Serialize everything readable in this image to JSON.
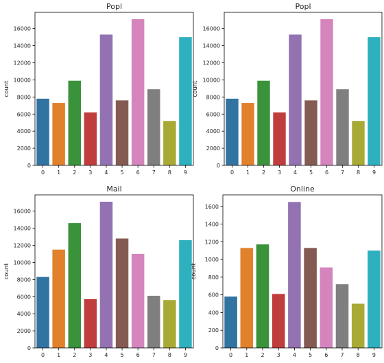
{
  "chart_data": [
    {
      "type": "bar",
      "title": "Popl",
      "xlabel": "",
      "ylabel": "count",
      "categories": [
        "0",
        "1",
        "2",
        "3",
        "4",
        "5",
        "6",
        "7",
        "8",
        "9"
      ],
      "values": [
        7800,
        7300,
        9900,
        6200,
        15300,
        7600,
        17100,
        8900,
        5200,
        15000
      ],
      "ylim": [
        0,
        17900
      ],
      "yticks": [
        0,
        2000,
        4000,
        6000,
        8000,
        10000,
        12000,
        14000,
        16000
      ],
      "grid": false
    },
    {
      "type": "bar",
      "title": "Popl",
      "xlabel": "",
      "ylabel": "count",
      "categories": [
        "0",
        "1",
        "2",
        "3",
        "4",
        "5",
        "6",
        "7",
        "8",
        "9"
      ],
      "values": [
        7800,
        7300,
        9900,
        6200,
        15300,
        7600,
        17100,
        8900,
        5200,
        15000
      ],
      "ylim": [
        0,
        17900
      ],
      "yticks": [
        0,
        2000,
        4000,
        6000,
        8000,
        10000,
        12000,
        14000,
        16000
      ],
      "grid": false
    },
    {
      "type": "bar",
      "title": "Mail",
      "xlabel": "",
      "ylabel": "count",
      "categories": [
        "0",
        "1",
        "2",
        "3",
        "4",
        "5",
        "6",
        "7",
        "8",
        "9"
      ],
      "values": [
        8300,
        11500,
        14600,
        5700,
        17100,
        12800,
        11000,
        6100,
        5600,
        12600
      ],
      "ylim": [
        0,
        17900
      ],
      "yticks": [
        0,
        2000,
        4000,
        6000,
        8000,
        10000,
        12000,
        14000,
        16000
      ],
      "grid": false
    },
    {
      "type": "bar",
      "title": "Online",
      "xlabel": "",
      "ylabel": "count",
      "categories": [
        "0",
        "1",
        "2",
        "3",
        "4",
        "5",
        "6",
        "7",
        "8",
        "9"
      ],
      "values": [
        580,
        1130,
        1170,
        610,
        1650,
        1130,
        910,
        720,
        500,
        1100
      ],
      "ylim": [
        0,
        1730
      ],
      "yticks": [
        0,
        200,
        400,
        600,
        800,
        1000,
        1200,
        1400,
        1600
      ],
      "grid": false
    }
  ],
  "palette": [
    "#3274a1",
    "#e1812c",
    "#3a923a",
    "#c03d3e",
    "#9372b2",
    "#845b53",
    "#d684bd",
    "#7f7f7f",
    "#a9aa35",
    "#2eb0bf"
  ]
}
